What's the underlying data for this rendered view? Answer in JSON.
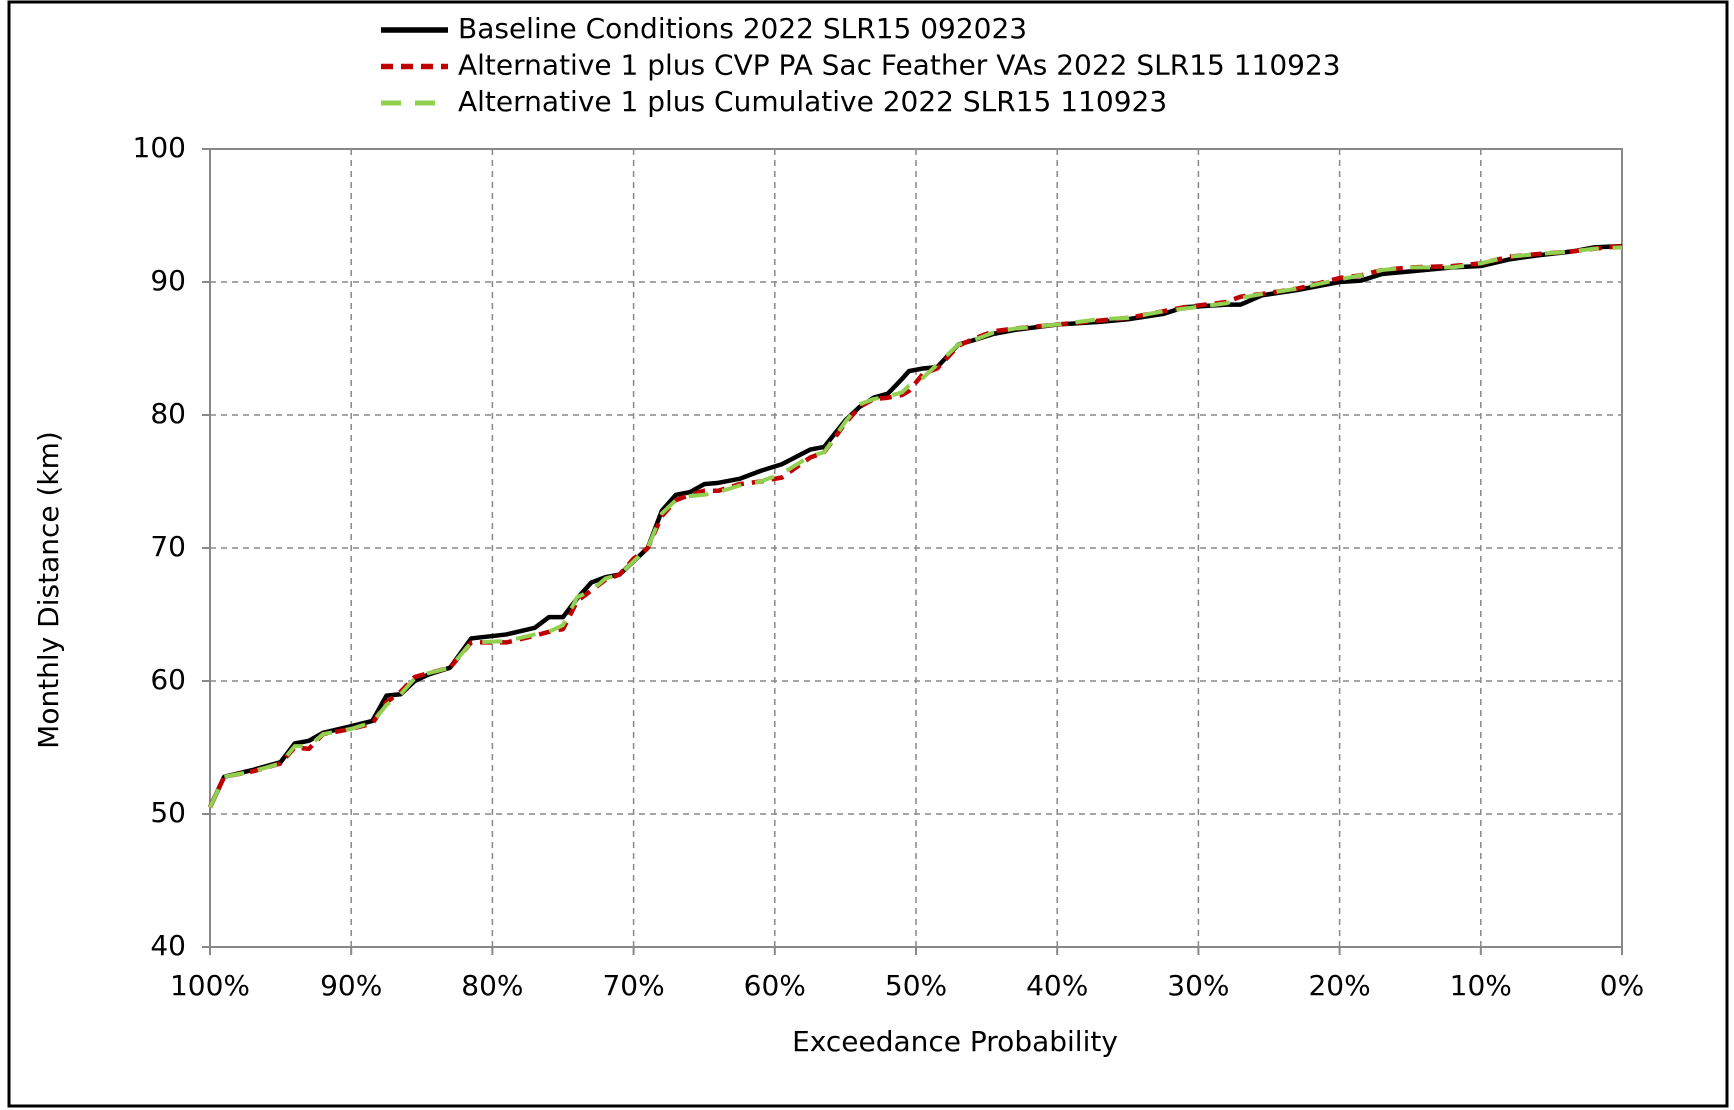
{
  "chart_data": {
    "type": "line",
    "xlabel": "Exceedance Probability",
    "ylabel": "Monthly Distance (km)",
    "x": [
      100,
      99,
      97,
      95,
      94,
      93,
      92,
      90,
      88.5,
      87.5,
      86.5,
      85.5,
      84.5,
      83,
      81.5,
      79,
      77,
      76,
      75,
      74,
      73,
      72,
      71,
      70,
      69,
      68,
      67,
      66,
      65,
      64,
      62.5,
      61,
      59.5,
      57.5,
      56.5,
      55,
      54,
      53,
      52,
      51,
      50.5,
      49.5,
      48.5,
      47,
      46,
      44.5,
      43,
      40,
      37,
      35,
      32.5,
      31,
      28,
      27,
      25.5,
      23,
      20,
      18.5,
      17,
      15,
      12,
      10,
      8,
      6,
      3.5,
      2,
      0
    ],
    "series": [
      {
        "name": "Baseline Conditions 2022 SLR15 092023",
        "color": "#000000",
        "values": [
          50.5,
          52.8,
          53.3,
          53.9,
          55.3,
          55.5,
          56.1,
          56.6,
          57.0,
          58.9,
          59.0,
          60.0,
          60.5,
          61.0,
          63.2,
          63.5,
          64.0,
          64.8,
          64.8,
          66.2,
          67.4,
          67.8,
          68.0,
          69.0,
          70.0,
          72.8,
          74.0,
          74.2,
          74.8,
          74.9,
          75.2,
          75.8,
          76.3,
          77.4,
          77.6,
          79.6,
          80.6,
          81.3,
          81.6,
          82.7,
          83.3,
          83.5,
          83.6,
          85.3,
          85.6,
          86.1,
          86.4,
          86.8,
          87.0,
          87.2,
          87.6,
          88.1,
          88.3,
          88.3,
          89.0,
          89.4,
          90.0,
          90.1,
          90.6,
          90.8,
          91.1,
          91.2,
          91.7,
          92.0,
          92.3,
          92.6,
          92.7
        ]
      },
      {
        "name": "Alternative 1 plus CVP PA Sac Feather VAs 2022 SLR15 110923",
        "color": "#c00000",
        "values": [
          50.5,
          52.8,
          53.2,
          53.8,
          55.0,
          54.9,
          56.0,
          56.4,
          56.8,
          58.4,
          59.2,
          60.3,
          60.6,
          61.0,
          62.9,
          62.9,
          63.4,
          63.7,
          63.9,
          66.0,
          66.8,
          67.6,
          68.0,
          69.2,
          70.0,
          72.4,
          73.6,
          74.0,
          74.3,
          74.3,
          74.8,
          75.0,
          75.3,
          76.8,
          77.2,
          79.4,
          80.6,
          81.2,
          81.3,
          81.5,
          81.8,
          83.1,
          83.5,
          85.2,
          85.7,
          86.3,
          86.5,
          86.8,
          87.1,
          87.3,
          87.8,
          88.1,
          88.5,
          88.9,
          89.1,
          89.5,
          90.3,
          90.5,
          90.9,
          91.1,
          91.2,
          91.4,
          91.9,
          92.1,
          92.3,
          92.5,
          92.7
        ]
      },
      {
        "name": "Alternative 1 plus Cumulative 2022 SLR15 110923",
        "color": "#92d050",
        "values": [
          50.5,
          52.8,
          53.2,
          53.8,
          55.1,
          55.1,
          56.0,
          56.4,
          56.9,
          58.2,
          59.0,
          60.2,
          60.6,
          61.0,
          62.9,
          63.0,
          63.5,
          63.7,
          64.2,
          66.3,
          66.8,
          67.7,
          68.0,
          69.0,
          70.0,
          72.6,
          73.6,
          73.9,
          74.0,
          74.2,
          74.7,
          75.0,
          75.6,
          76.9,
          77.2,
          79.5,
          80.8,
          81.2,
          81.4,
          81.7,
          82.2,
          82.8,
          83.8,
          85.3,
          85.6,
          86.2,
          86.5,
          86.8,
          87.2,
          87.3,
          87.8,
          88.0,
          88.4,
          88.8,
          89.1,
          89.5,
          90.2,
          90.5,
          90.9,
          91.1,
          91.1,
          91.4,
          91.9,
          92.1,
          92.3,
          92.5,
          92.6
        ]
      }
    ],
    "xlim": [
      100,
      0
    ],
    "xticks": [
      {
        "value": 100,
        "label": "100%"
      },
      {
        "value": 90,
        "label": "90%"
      },
      {
        "value": 80,
        "label": "80%"
      },
      {
        "value": 70,
        "label": "70%"
      },
      {
        "value": 60,
        "label": "60%"
      },
      {
        "value": 50,
        "label": "50%"
      },
      {
        "value": 40,
        "label": "40%"
      },
      {
        "value": 30,
        "label": "30%"
      },
      {
        "value": 20,
        "label": "20%"
      },
      {
        "value": 10,
        "label": "10%"
      },
      {
        "value": 0,
        "label": "0%"
      }
    ],
    "ylim": [
      40,
      100
    ],
    "yticks": [
      40,
      50,
      60,
      70,
      80,
      90,
      100
    ],
    "grid": true,
    "legend": "top"
  }
}
